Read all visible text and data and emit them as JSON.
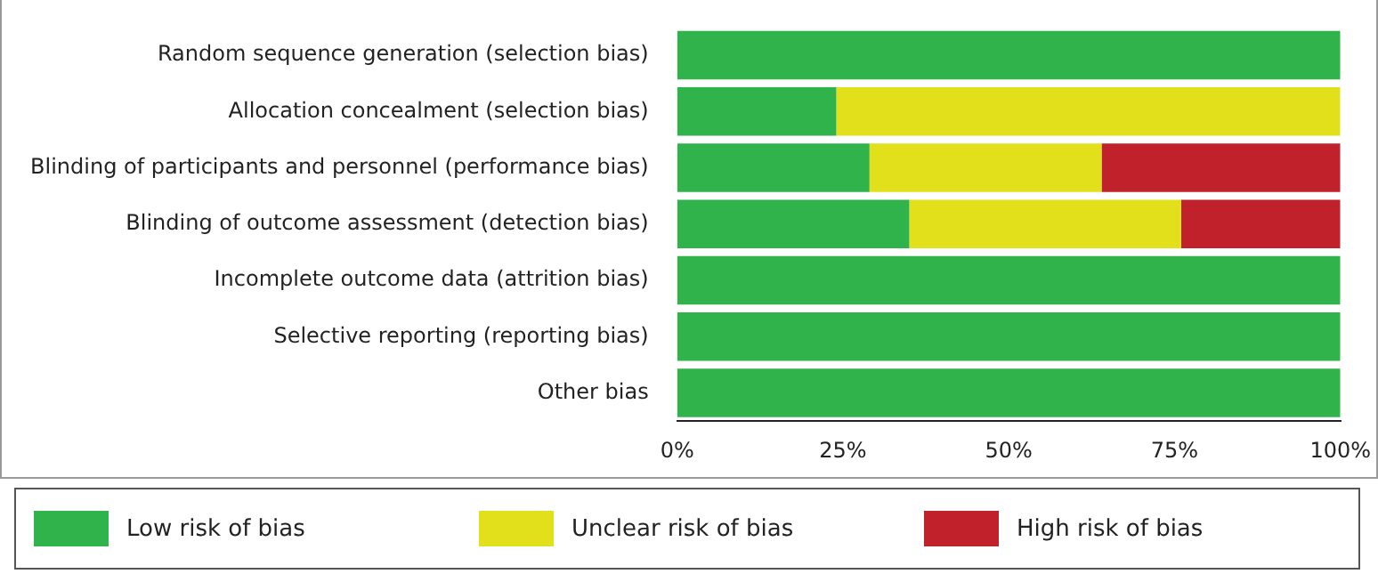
{
  "chart_data": {
    "type": "bar",
    "orientation": "horizontal",
    "stacked": true,
    "categories": [
      "Random sequence generation (selection bias)",
      "Allocation concealment (selection bias)",
      "Blinding of participants and personnel (performance bias)",
      "Blinding of outcome assessment (detection bias)",
      "Incomplete outcome data (attrition bias)",
      "Selective reporting (reporting bias)",
      "Other bias"
    ],
    "series": [
      {
        "name": "Low risk of bias",
        "color": "#31b34b",
        "values": [
          100,
          24,
          29,
          35,
          100,
          100,
          100
        ]
      },
      {
        "name": "Unclear risk of bias",
        "color": "#e1e01a",
        "values": [
          0,
          76,
          35,
          41,
          0,
          0,
          0
        ]
      },
      {
        "name": "High risk of bias",
        "color": "#c1212a",
        "values": [
          0,
          0,
          36,
          24,
          0,
          0,
          0
        ]
      }
    ],
    "xlim": [
      0,
      100
    ],
    "xticks": [
      {
        "value": 0,
        "label": "0%"
      },
      {
        "value": 25,
        "label": "25%"
      },
      {
        "value": 50,
        "label": "50%"
      },
      {
        "value": 75,
        "label": "75%"
      },
      {
        "value": 100,
        "label": "100%"
      }
    ],
    "grid": false,
    "legend": "bottom"
  }
}
